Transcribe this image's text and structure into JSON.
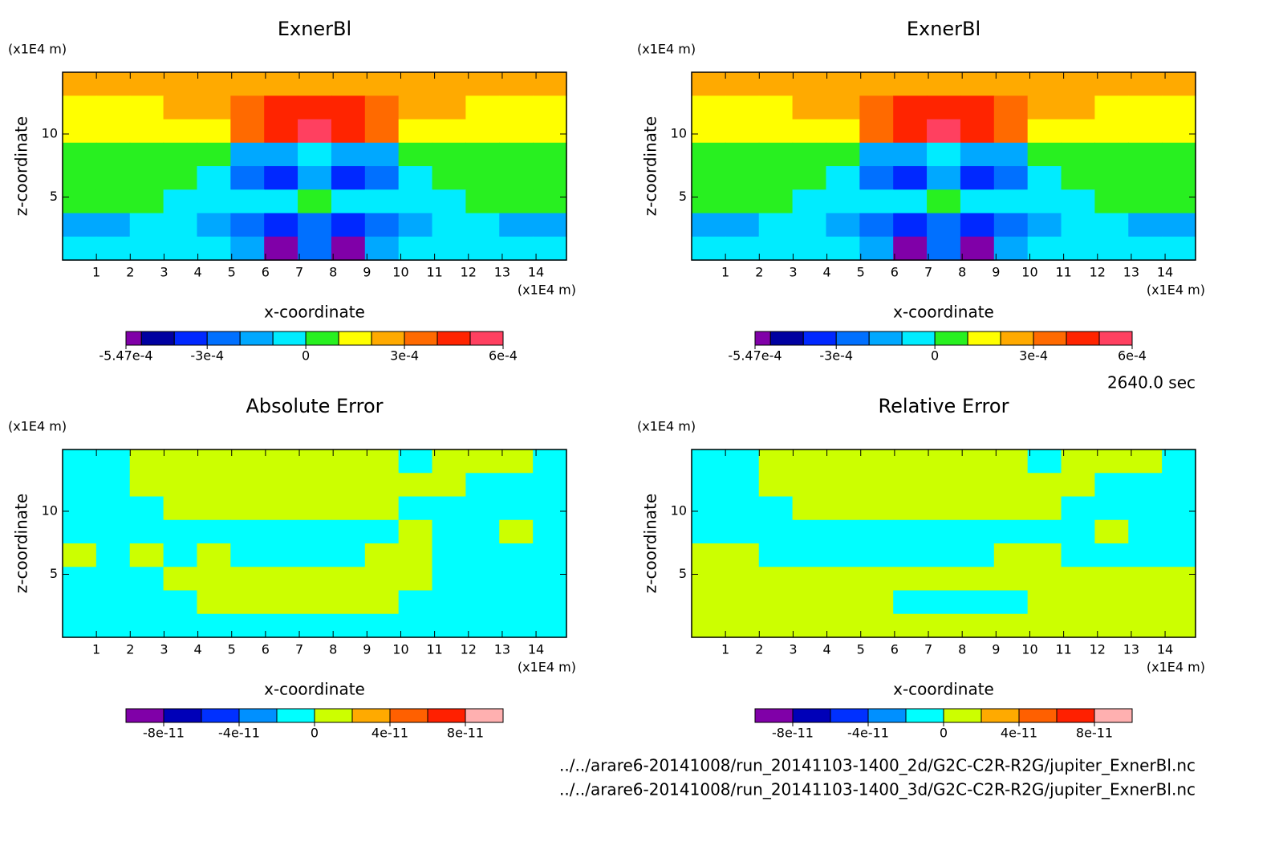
{
  "chart_data": [
    {
      "type": "contour",
      "title": "ExnerBl",
      "xlabel": "x-coordinate",
      "ylabel": "z-coordinate",
      "xunit": "(x1E4 m)",
      "yunit": "(x1E4 m)",
      "xlim": [
        0,
        14.9
      ],
      "ylim": [
        0,
        14.9
      ],
      "xticks": [
        1,
        2,
        3,
        4,
        5,
        6,
        7,
        8,
        9,
        10,
        11,
        12,
        13,
        14
      ],
      "yticks": [
        5,
        10
      ],
      "levels": [
        -0.000547,
        -0.0005,
        -0.0004,
        -0.0003,
        -0.0002,
        -0.0001,
        0,
        0.0001,
        0.0002,
        0.0003,
        0.0004,
        0.0005,
        0.0006
      ],
      "colors": [
        "#8000a8",
        "#0000a0",
        "#0028ff",
        "#0070ff",
        "#00a8ff",
        "#00ecff",
        "#28f020",
        "#ffff00",
        "#ffaa00",
        "#ff6a00",
        "#ff2400",
        "#ff4060"
      ],
      "colorbar_ticks": [
        {
          "value": -0.000547,
          "label": "-5.47e-4"
        },
        {
          "value": -0.0003,
          "label": "-3e-4"
        },
        0,
        {
          "value": 0.0003,
          "label": "3e-4"
        },
        {
          "value": 0.0006,
          "label": "6e-4"
        }
      ],
      "field": [
        [
          0.00025,
          0.00025,
          0.00025,
          0.00025,
          0.00025,
          0.00025,
          0.00025,
          0.00025,
          0.00025,
          0.00025,
          0.00025,
          0.00025,
          0.00025,
          0.00025,
          0.00025
        ],
        [
          0.00015,
          0.00015,
          0.00015,
          0.00025,
          0.00025,
          0.00035,
          0.00045,
          0.00045,
          0.00045,
          0.00035,
          0.00025,
          0.00025,
          0.00015,
          0.00015,
          0.00015
        ],
        [
          0.00015,
          0.00015,
          0.00015,
          0.00015,
          0.00015,
          0.00035,
          0.00045,
          0.00055,
          0.00045,
          0.00035,
          0.00015,
          0.00015,
          0.00015,
          0.00015,
          0.00015
        ],
        [
          5e-05,
          5e-05,
          5e-05,
          5e-05,
          5e-05,
          -0.00015,
          -0.00015,
          -5e-05,
          -0.00015,
          -0.00015,
          5e-05,
          5e-05,
          5e-05,
          5e-05,
          5e-05
        ],
        [
          5e-05,
          5e-05,
          5e-05,
          5e-05,
          -5e-05,
          -0.00025,
          -0.00035,
          -0.00015,
          -0.00035,
          -0.00025,
          -5e-05,
          5e-05,
          5e-05,
          5e-05,
          5e-05
        ],
        [
          5e-05,
          5e-05,
          5e-05,
          -5e-05,
          -5e-05,
          -5e-05,
          -5e-05,
          5e-05,
          -5e-05,
          -5e-05,
          -5e-05,
          -5e-05,
          5e-05,
          5e-05,
          5e-05
        ],
        [
          -0.00015,
          -0.00015,
          -5e-05,
          -5e-05,
          -0.00015,
          -0.00025,
          -0.00035,
          -0.00025,
          -0.00035,
          -0.00025,
          -0.00015,
          -5e-05,
          -5e-05,
          -0.00015,
          -0.00015
        ],
        [
          -5e-05,
          -5e-05,
          -5e-05,
          -5e-05,
          -5e-05,
          -0.00015,
          -0.00052,
          -0.00025,
          -0.00052,
          -0.00015,
          -5e-05,
          -5e-05,
          -5e-05,
          -5e-05,
          -5e-05
        ]
      ]
    },
    {
      "type": "contour",
      "title": "ExnerBl",
      "xlabel": "x-coordinate",
      "ylabel": "z-coordinate",
      "xunit": "(x1E4 m)",
      "yunit": "(x1E4 m)",
      "xlim": [
        0,
        14.9
      ],
      "ylim": [
        0,
        14.9
      ],
      "xticks": [
        1,
        2,
        3,
        4,
        5,
        6,
        7,
        8,
        9,
        10,
        11,
        12,
        13,
        14
      ],
      "yticks": [
        5,
        10
      ],
      "levels": [
        -0.000547,
        -0.0005,
        -0.0004,
        -0.0003,
        -0.0002,
        -0.0001,
        0,
        0.0001,
        0.0002,
        0.0003,
        0.0004,
        0.0005,
        0.0006
      ],
      "colors": [
        "#8000a8",
        "#0000a0",
        "#0028ff",
        "#0070ff",
        "#00a8ff",
        "#00ecff",
        "#28f020",
        "#ffff00",
        "#ffaa00",
        "#ff6a00",
        "#ff2400",
        "#ff4060"
      ],
      "colorbar_ticks": [
        {
          "value": -0.000547,
          "label": "-5.47e-4"
        },
        {
          "value": -0.0003,
          "label": "-3e-4"
        },
        0,
        {
          "value": 0.0003,
          "label": "3e-4"
        },
        {
          "value": 0.0006,
          "label": "6e-4"
        }
      ],
      "field": [
        [
          0.00025,
          0.00025,
          0.00025,
          0.00025,
          0.00025,
          0.00025,
          0.00025,
          0.00025,
          0.00025,
          0.00025,
          0.00025,
          0.00025,
          0.00025,
          0.00025,
          0.00025
        ],
        [
          0.00015,
          0.00015,
          0.00015,
          0.00025,
          0.00025,
          0.00035,
          0.00045,
          0.00045,
          0.00045,
          0.00035,
          0.00025,
          0.00025,
          0.00015,
          0.00015,
          0.00015
        ],
        [
          0.00015,
          0.00015,
          0.00015,
          0.00015,
          0.00015,
          0.00035,
          0.00045,
          0.00055,
          0.00045,
          0.00035,
          0.00015,
          0.00015,
          0.00015,
          0.00015,
          0.00015
        ],
        [
          5e-05,
          5e-05,
          5e-05,
          5e-05,
          5e-05,
          -0.00015,
          -0.00015,
          -5e-05,
          -0.00015,
          -0.00015,
          5e-05,
          5e-05,
          5e-05,
          5e-05,
          5e-05
        ],
        [
          5e-05,
          5e-05,
          5e-05,
          5e-05,
          -5e-05,
          -0.00025,
          -0.00035,
          -0.00015,
          -0.00035,
          -0.00025,
          -5e-05,
          5e-05,
          5e-05,
          5e-05,
          5e-05
        ],
        [
          5e-05,
          5e-05,
          5e-05,
          -5e-05,
          -5e-05,
          -5e-05,
          -5e-05,
          5e-05,
          -5e-05,
          -5e-05,
          -5e-05,
          -5e-05,
          5e-05,
          5e-05,
          5e-05
        ],
        [
          -0.00015,
          -0.00015,
          -5e-05,
          -5e-05,
          -0.00015,
          -0.00025,
          -0.00035,
          -0.00025,
          -0.00035,
          -0.00025,
          -0.00015,
          -5e-05,
          -5e-05,
          -0.00015,
          -0.00015
        ],
        [
          -5e-05,
          -5e-05,
          -5e-05,
          -5e-05,
          -5e-05,
          -0.00015,
          -0.00052,
          -0.00025,
          -0.00052,
          -0.00015,
          -5e-05,
          -5e-05,
          -5e-05,
          -5e-05,
          -5e-05
        ]
      ]
    },
    {
      "type": "contour",
      "title": "Absolute Error",
      "xlabel": "x-coordinate",
      "ylabel": "z-coordinate",
      "xunit": "(x1E4 m)",
      "yunit": "(x1E4 m)",
      "xlim": [
        0,
        14.9
      ],
      "ylim": [
        0,
        14.9
      ],
      "xticks": [
        1,
        2,
        3,
        4,
        5,
        6,
        7,
        8,
        9,
        10,
        11,
        12,
        13,
        14
      ],
      "yticks": [
        5,
        10
      ],
      "levels": [
        -1e-10,
        -8e-11,
        -6e-11,
        -4e-11,
        -2e-11,
        0,
        2e-11,
        4e-11,
        6e-11,
        8e-11,
        1e-10
      ],
      "colors": [
        "#8000a8",
        "#0000b8",
        "#0030ff",
        "#0090ff",
        "#00ffff",
        "#ccff00",
        "#ffaa00",
        "#ff6000",
        "#ff2000",
        "#ffb0b0"
      ],
      "colorbar_ticks": [
        {
          "value": -8e-11,
          "label": "-8e-11"
        },
        {
          "value": -4e-11,
          "label": "-4e-11"
        },
        0,
        {
          "value": 4e-11,
          "label": "4e-11"
        },
        {
          "value": 8e-11,
          "label": "8e-11"
        }
      ],
      "field": [
        [
          -1e-11,
          -1e-11,
          1e-11,
          1e-11,
          1e-11,
          1e-11,
          1e-11,
          1e-11,
          1e-11,
          1e-11,
          -1e-11,
          1e-11,
          1e-11,
          1e-11,
          -1e-11
        ],
        [
          -1e-11,
          -1e-11,
          1e-11,
          1e-11,
          1e-11,
          1e-11,
          1e-11,
          1e-11,
          1e-11,
          1e-11,
          1e-11,
          1e-11,
          -1e-11,
          -1e-11,
          -1e-11
        ],
        [
          -1e-11,
          -1e-11,
          -1e-11,
          1e-11,
          1e-11,
          1e-11,
          1e-11,
          1e-11,
          1e-11,
          1e-11,
          -1e-11,
          -1e-11,
          -1e-11,
          -1e-11,
          -1e-11
        ],
        [
          -1e-11,
          -1e-11,
          -1e-11,
          -1e-11,
          -1e-11,
          -1e-11,
          -1e-11,
          -1e-11,
          -1e-11,
          -1e-11,
          1e-11,
          -1e-11,
          -1e-11,
          1e-11,
          -1e-11
        ],
        [
          1e-11,
          -1e-11,
          1e-11,
          -1e-11,
          1e-11,
          -1e-11,
          -1e-11,
          -1e-11,
          -1e-11,
          1e-11,
          1e-11,
          -1e-11,
          -1e-11,
          -1e-11,
          -1e-11
        ],
        [
          -1e-11,
          -1e-11,
          -1e-11,
          1e-11,
          1e-11,
          1e-11,
          1e-11,
          1e-11,
          1e-11,
          1e-11,
          1e-11,
          -1e-11,
          -1e-11,
          -1e-11,
          -1e-11
        ],
        [
          -1e-11,
          -1e-11,
          -1e-11,
          -1e-11,
          1e-11,
          1e-11,
          1e-11,
          1e-11,
          1e-11,
          1e-11,
          -1e-11,
          -1e-11,
          -1e-11,
          -1e-11,
          -1e-11
        ],
        [
          -1e-11,
          -1e-11,
          -1e-11,
          -1e-11,
          -1e-11,
          -1e-11,
          -1e-11,
          -1e-11,
          -1e-11,
          -1e-11,
          -1e-11,
          -1e-11,
          -1e-11,
          -1e-11,
          -1e-11
        ]
      ]
    },
    {
      "type": "contour",
      "title": "Relative Error",
      "xlabel": "x-coordinate",
      "ylabel": "z-coordinate",
      "xunit": "(x1E4 m)",
      "yunit": "(x1E4 m)",
      "xlim": [
        0,
        14.9
      ],
      "ylim": [
        0,
        14.9
      ],
      "xticks": [
        1,
        2,
        3,
        4,
        5,
        6,
        7,
        8,
        9,
        10,
        11,
        12,
        13,
        14
      ],
      "yticks": [
        5,
        10
      ],
      "levels": [
        -1e-10,
        -8e-11,
        -6e-11,
        -4e-11,
        -2e-11,
        0,
        2e-11,
        4e-11,
        6e-11,
        8e-11,
        1e-10
      ],
      "colors": [
        "#8000a8",
        "#0000b8",
        "#0030ff",
        "#0090ff",
        "#00ffff",
        "#ccff00",
        "#ffaa00",
        "#ff6000",
        "#ff2000",
        "#ffb0b0"
      ],
      "colorbar_ticks": [
        {
          "value": -8e-11,
          "label": "-8e-11"
        },
        {
          "value": -4e-11,
          "label": "-4e-11"
        },
        0,
        {
          "value": 4e-11,
          "label": "4e-11"
        },
        {
          "value": 8e-11,
          "label": "8e-11"
        }
      ],
      "field": [
        [
          -1e-11,
          -1e-11,
          1e-11,
          1e-11,
          1e-11,
          1e-11,
          1e-11,
          1e-11,
          1e-11,
          1e-11,
          -1e-11,
          1e-11,
          1e-11,
          1e-11,
          -1e-11
        ],
        [
          -1e-11,
          -1e-11,
          1e-11,
          1e-11,
          1e-11,
          1e-11,
          1e-11,
          1e-11,
          1e-11,
          1e-11,
          1e-11,
          1e-11,
          -1e-11,
          -1e-11,
          -1e-11
        ],
        [
          -1e-11,
          -1e-11,
          -1e-11,
          1e-11,
          1e-11,
          1e-11,
          1e-11,
          1e-11,
          1e-11,
          1e-11,
          1e-11,
          -1e-11,
          -1e-11,
          -1e-11,
          -1e-11
        ],
        [
          -1e-11,
          -1e-11,
          -1e-11,
          -1e-11,
          -1e-11,
          -1e-11,
          -1e-11,
          -1e-11,
          -1e-11,
          -1e-11,
          -1e-11,
          -1e-11,
          1e-11,
          -1e-11,
          -1e-11
        ],
        [
          1e-11,
          1e-11,
          -1e-11,
          -1e-11,
          -1e-11,
          -1e-11,
          -1e-11,
          -1e-11,
          -1e-11,
          1e-11,
          1e-11,
          -1e-11,
          -1e-11,
          -1e-11,
          -1e-11
        ],
        [
          1e-11,
          1e-11,
          1e-11,
          1e-11,
          1e-11,
          1e-11,
          1e-11,
          1e-11,
          1e-11,
          1e-11,
          1e-11,
          1e-11,
          1e-11,
          1e-11,
          1e-11
        ],
        [
          1e-11,
          1e-11,
          1e-11,
          1e-11,
          1e-11,
          1e-11,
          -1e-11,
          -1e-11,
          -1e-11,
          -1e-11,
          1e-11,
          1e-11,
          1e-11,
          1e-11,
          1e-11
        ],
        [
          1e-11,
          1e-11,
          1e-11,
          1e-11,
          1e-11,
          1e-11,
          1e-11,
          1e-11,
          1e-11,
          1e-11,
          1e-11,
          1e-11,
          1e-11,
          1e-11,
          1e-11
        ]
      ]
    }
  ],
  "time": "2640.0 sec",
  "files": [
    "../../arare6-20141008/run_20141103-1400_2d/G2C-C2R-R2G/jupiter_ExnerBl.nc",
    "../../arare6-20141008/run_20141103-1400_3d/G2C-C2R-R2G/jupiter_ExnerBl.nc"
  ]
}
